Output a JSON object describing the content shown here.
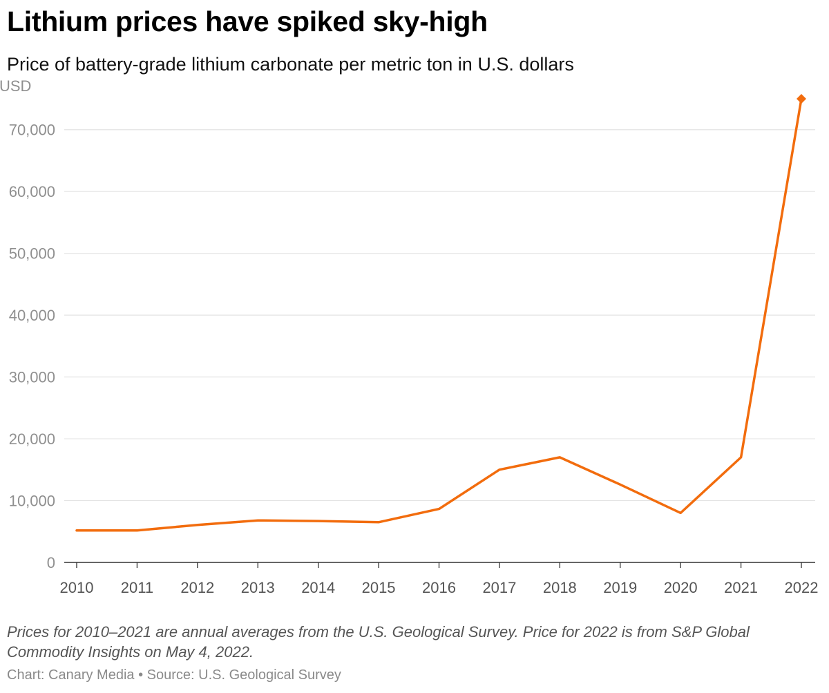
{
  "chart_data": {
    "type": "line",
    "title": "Lithium prices have spiked sky-high",
    "subtitle": "Price of battery-grade lithium carbonate per metric ton in U.S. dollars",
    "ylabel": "USD",
    "xlabel": "",
    "x": [
      "2010",
      "2011",
      "2012",
      "2013",
      "2014",
      "2015",
      "2016",
      "2017",
      "2018",
      "2019",
      "2020",
      "2021",
      "2022"
    ],
    "series": [
      {
        "values": [
          5180,
          5180,
          6060,
          6800,
          6690,
          6500,
          8650,
          15000,
          17000,
          12600,
          8000,
          17000,
          75000
        ],
        "color": "#f26c0d"
      }
    ],
    "ylim": [
      0,
      75000
    ],
    "yticks": [
      "0",
      "10,000",
      "20,000",
      "30,000",
      "40,000",
      "50,000",
      "60,000",
      "70,000"
    ],
    "ytick_values": [
      0,
      10000,
      20000,
      30000,
      40000,
      50000,
      60000,
      70000
    ],
    "grid": true,
    "last_point_marker": "diamond",
    "note": "Prices for 2010–2021 are annual averages from the U.S. Geological Survey. Price for 2022 is from S&P Global Commodity Insights on May 4, 2022.",
    "credit": "Chart: Canary Media • Source: U.S. Geological Survey"
  }
}
